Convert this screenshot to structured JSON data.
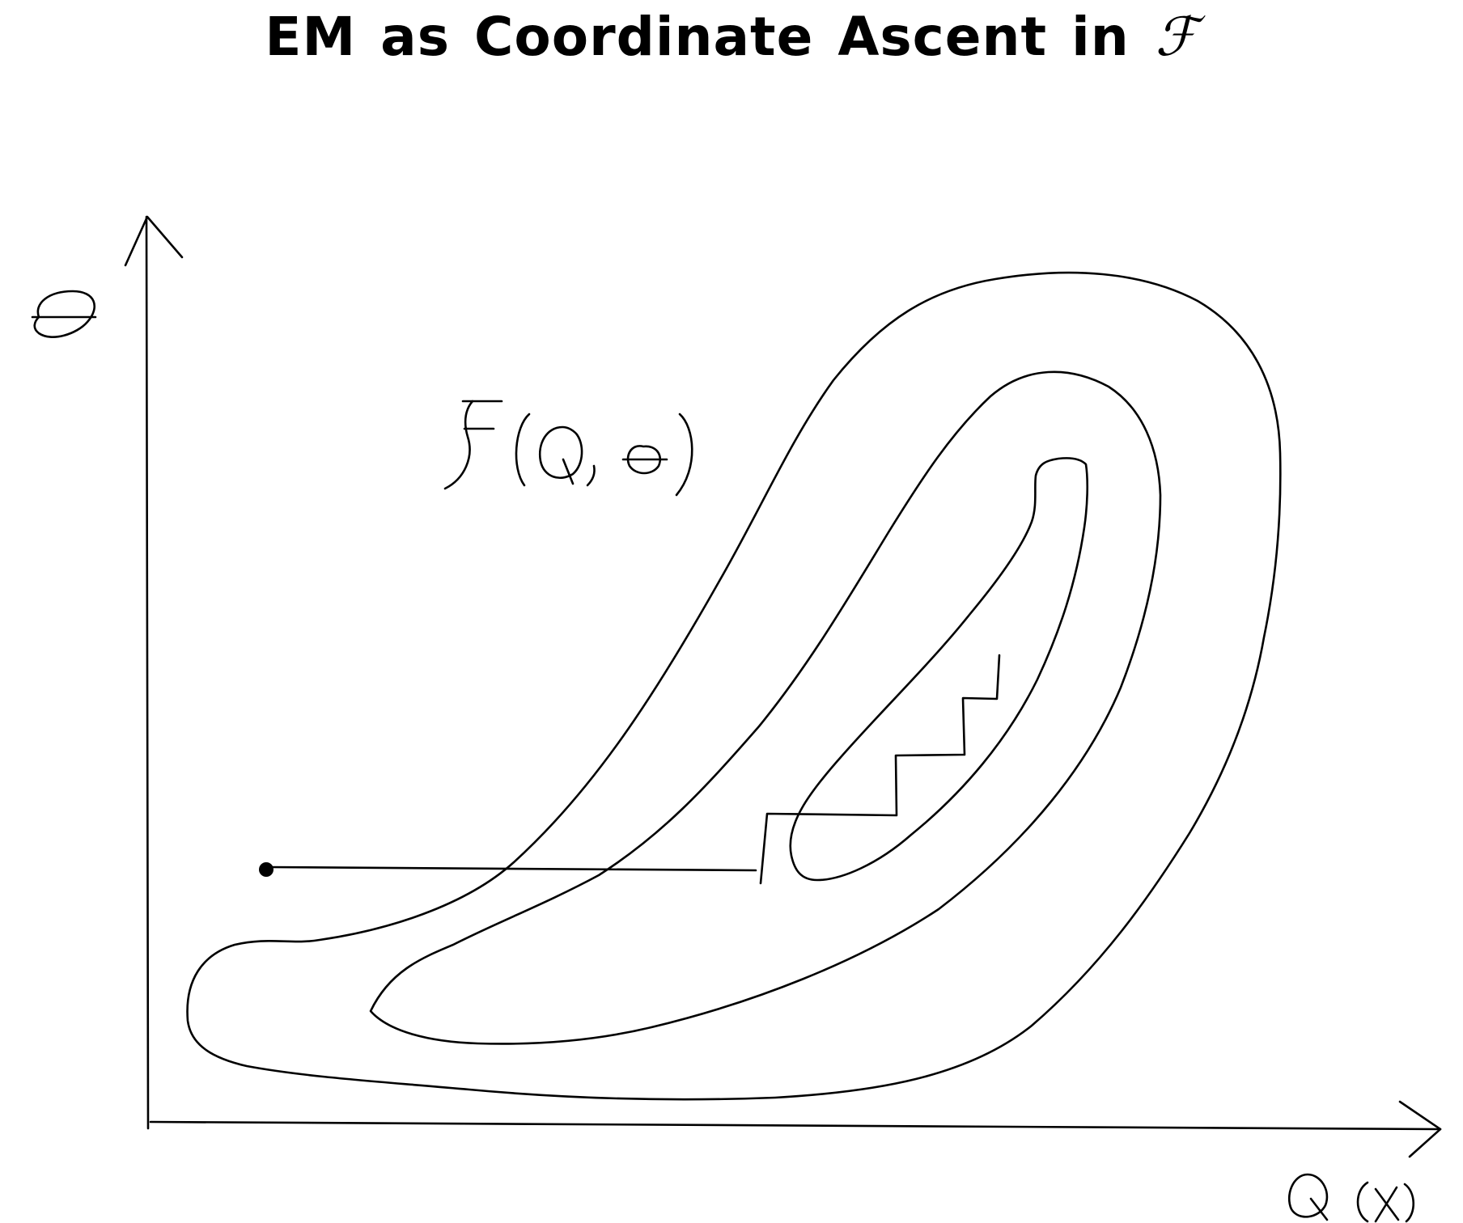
{
  "title": {
    "main": "EM as Coordinate Ascent in",
    "symbol": "ℱ"
  },
  "axes": {
    "x_label": "Q(X)",
    "y_label": "θ"
  },
  "surface_label": "F(Q,θ)",
  "colors": {
    "ink": "#000000",
    "background": "#ffffff"
  }
}
